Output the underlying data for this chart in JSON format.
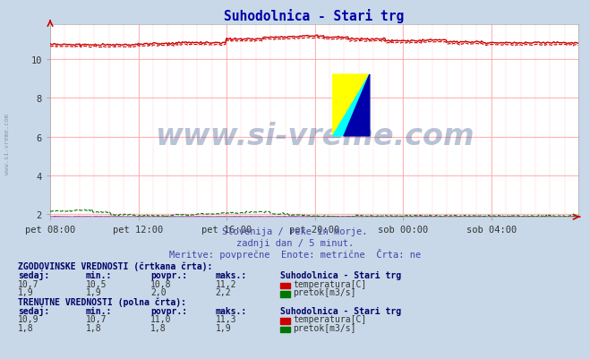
{
  "title": "Suhodolnica - Stari trg",
  "title_color": "#0000aa",
  "bg_color": "#c8d8e8",
  "plot_bg_color": "#ffffff",
  "grid_color": "#ffaaaa",
  "grid_minor_color": "#ffdddd",
  "xlabel_ticks": [
    "pet 08:00",
    "pet 12:00",
    "pet 16:00",
    "pet 20:00",
    "sob 00:00",
    "sob 04:00"
  ],
  "tick_positions": [
    0,
    72,
    144,
    216,
    288,
    360
  ],
  "total_points": 432,
  "ylim": [
    1.85,
    11.8
  ],
  "yticks": [
    2,
    4,
    6,
    8,
    10
  ],
  "temp_hist_color": "#cc0000",
  "temp_curr_color": "#cc0000",
  "flow_hist_color": "#007700",
  "flow_curr_color": "#007700",
  "height_color": "#aa00aa",
  "watermark_text": "www.si-vreme.com",
  "watermark_color": "#1a3a7a",
  "watermark_alpha": 0.3,
  "subtitle1": "Slovenija / reke in morje.",
  "subtitle2": "zadnji dan / 5 minut.",
  "subtitle3": "Meritve: povprečne  Enote: metrične  Črta: ne",
  "subtitle_color": "#4444aa",
  "left_label": "www.si-vreme.com",
  "left_label_color": "#888888",
  "table_text_color": "#333333",
  "table_header_color": "#000066",
  "table_bold_color": "#000066",
  "temp_box_color": "#cc0000",
  "flow_box_color": "#007700",
  "hist_label": "ZGODOVINSKE VREDNOSTI (črtkana črta):",
  "curr_label": "TRENUTNE VREDNOSTI (polna črta):",
  "hist_temp_vals": [
    "10,7",
    "10,5",
    "10,8",
    "11,2"
  ],
  "hist_flow_vals": [
    "1,9",
    "1,9",
    "2,0",
    "2,2"
  ],
  "curr_temp_vals": [
    "10,9",
    "10,7",
    "11,0",
    "11,3"
  ],
  "curr_flow_vals": [
    "1,8",
    "1,8",
    "1,8",
    "1,9"
  ],
  "station_name": "Suhodolnica - Stari trg",
  "temp_label": "temperatura[C]",
  "flow_label": "pretok[m3/s]"
}
